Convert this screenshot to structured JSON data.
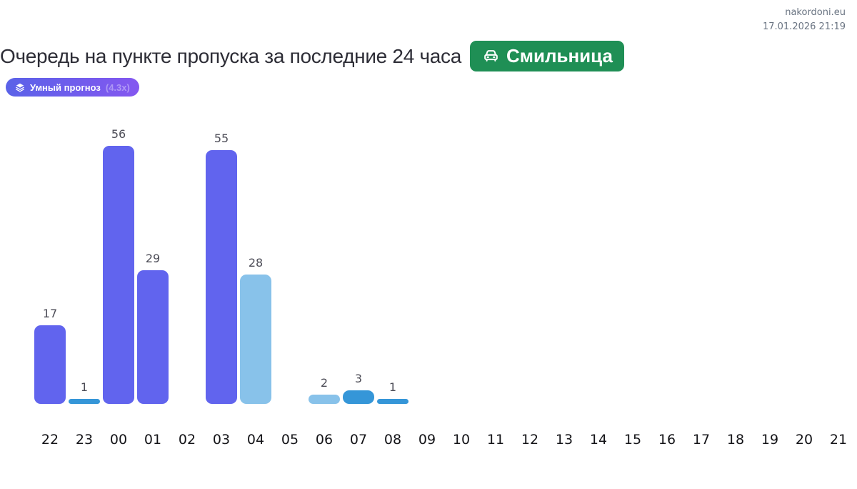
{
  "meta": {
    "site": "nakordoni.eu",
    "datetime": "17.01.2026 21:19"
  },
  "header": {
    "title": "Очередь на пункте пропуска за последние 24 часа",
    "checkpoint": "Смильница",
    "forecast_label": "Умный прогноз",
    "forecast_multiplier": "(4.3x)"
  },
  "colors": {
    "purple": "#6164ee",
    "lightBlue": "#88c2ea",
    "blue": "#3596d8",
    "green": "#1f8f55",
    "chip_gradient_start": "#5a62e8",
    "chip_gradient_end": "#8457f0"
  },
  "chart_data": {
    "type": "bar",
    "title": "Очередь на пункте пропуска за последние 24 часа",
    "xlabel": "",
    "ylabel": "",
    "ylim": [
      0,
      60
    ],
    "grid": false,
    "value_labels": true,
    "categories": [
      "22",
      "23",
      "00",
      "01",
      "02",
      "03",
      "04",
      "05",
      "06",
      "07",
      "08",
      "09",
      "10",
      "11",
      "12",
      "13",
      "14",
      "15",
      "16",
      "17",
      "18",
      "19",
      "20",
      "21"
    ],
    "values": [
      17,
      1,
      56,
      29,
      0,
      55,
      28,
      0,
      2,
      3,
      1,
      0,
      0,
      0,
      0,
      0,
      0,
      0,
      0,
      0,
      0,
      0,
      0,
      0
    ],
    "bar_color_keys": [
      "purple",
      "blue",
      "purple",
      "purple",
      null,
      "purple",
      "lightBlue",
      null,
      "lightBlue",
      "blue",
      "blue",
      null,
      null,
      null,
      null,
      null,
      null,
      null,
      null,
      null,
      null,
      null,
      null,
      null
    ]
  }
}
